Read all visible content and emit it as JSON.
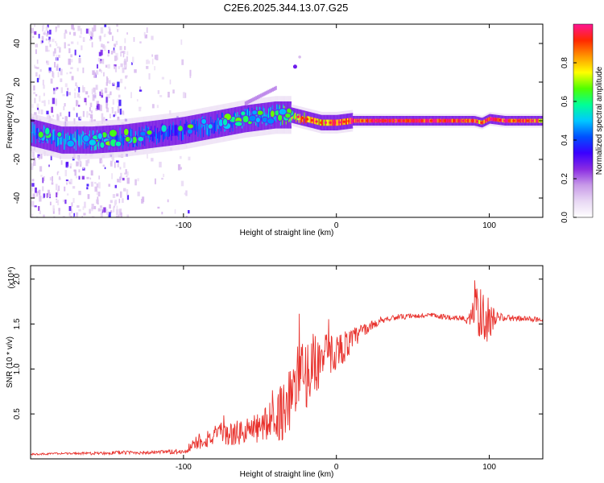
{
  "title": "C2E6.2025.344.13.07.G25",
  "colors": {
    "snr_line": "#e8322d",
    "frame": "#000000",
    "colormap": [
      "#ffffff",
      "#e8d8f4",
      "#c89ae8",
      "#8a2be2",
      "#3a00ff",
      "#0050ff",
      "#00c8ff",
      "#00ff96",
      "#50ff00",
      "#ffff00",
      "#ff9600",
      "#ff2800",
      "#ff1493"
    ]
  },
  "chart_data": [
    {
      "type": "heatmap",
      "xlabel": "Height of straight line (km)",
      "ylabel": "Frequency (Hz)",
      "xlim": [
        -200,
        135
      ],
      "ylim": [
        -50,
        50
      ],
      "xticks": [
        -100,
        0,
        100
      ],
      "xtick_labels": [
        "-100",
        "0",
        "100"
      ],
      "yticks": [
        -40,
        -20,
        0,
        20,
        40
      ],
      "ytick_labels": [
        "-40",
        "-20",
        "0",
        "20",
        "40"
      ],
      "colorbar": {
        "label": "Normalized spectral amplitude",
        "range": [
          0,
          1
        ],
        "ticks": [
          0.0,
          0.2,
          0.4,
          0.6,
          0.8
        ],
        "tick_labels": [
          "0.0",
          "0.2",
          "0.4",
          "0.6",
          "0.8"
        ]
      },
      "ridge": {
        "x": [
          -200,
          -180,
          -160,
          -140,
          -120,
          -100,
          -80,
          -60,
          -40,
          -30,
          -20,
          -10,
          0,
          10,
          20,
          40,
          60,
          80,
          90,
          95,
          100,
          110,
          135
        ],
        "freq": [
          -6,
          -10,
          -10,
          -9,
          -7,
          -5,
          -2,
          1,
          3,
          3,
          1,
          -1,
          -1,
          0,
          0,
          0,
          0,
          0,
          0,
          -1,
          1,
          0,
          0
        ],
        "amplitude": [
          0.45,
          0.5,
          0.5,
          0.45,
          0.4,
          0.4,
          0.45,
          0.5,
          0.5,
          0.7,
          0.85,
          0.85,
          0.9,
          0.95,
          1.0,
          0.98,
          0.98,
          0.98,
          0.95,
          0.8,
          0.95,
          0.9,
          0.85
        ]
      }
    },
    {
      "type": "line",
      "xlabel": "Height of straight line (km)",
      "ylabel": "SNR (10 * v/v)",
      "y_multiplier": "(x10⁴)",
      "xlim": [
        -200,
        135
      ],
      "ylim": [
        0,
        2.15
      ],
      "xticks": [
        -100,
        0,
        100
      ],
      "xtick_labels": [
        "-100",
        "0",
        "100"
      ],
      "yticks": [
        0.5,
        1.0,
        1.5,
        2.0
      ],
      "ytick_labels": [
        "0.5",
        "1.0",
        "1.5",
        "2.0"
      ],
      "series": [
        {
          "x": [
            -200,
            -180,
            -160,
            -140,
            -120,
            -100,
            -90,
            -80,
            -70,
            -60,
            -50,
            -40,
            -35,
            -30,
            -25,
            -20,
            -15,
            -10,
            -5,
            0,
            5,
            10,
            15,
            20,
            25,
            30,
            40,
            50,
            60,
            70,
            80,
            85,
            90,
            95,
            100,
            105,
            110,
            120,
            135
          ],
          "values": [
            0.05,
            0.06,
            0.06,
            0.07,
            0.07,
            0.08,
            0.2,
            0.25,
            0.27,
            0.3,
            0.35,
            0.45,
            0.55,
            0.7,
            0.85,
            0.95,
            1.05,
            1.1,
            1.15,
            1.2,
            1.25,
            1.3,
            1.4,
            1.45,
            1.5,
            1.55,
            1.58,
            1.58,
            1.6,
            1.58,
            1.57,
            1.55,
            1.65,
            1.6,
            1.55,
            1.58,
            1.57,
            1.56,
            1.55
          ],
          "noise_amplitude": [
            0.01,
            0.01,
            0.015,
            0.02,
            0.02,
            0.03,
            0.1,
            0.12,
            0.13,
            0.15,
            0.18,
            0.25,
            0.35,
            0.4,
            0.45,
            0.4,
            0.35,
            0.3,
            0.25,
            0.2,
            0.18,
            0.15,
            0.1,
            0.06,
            0.05,
            0.04,
            0.03,
            0.03,
            0.03,
            0.03,
            0.03,
            0.05,
            0.25,
            0.3,
            0.25,
            0.05,
            0.04,
            0.03,
            0.03
          ]
        }
      ]
    }
  ]
}
